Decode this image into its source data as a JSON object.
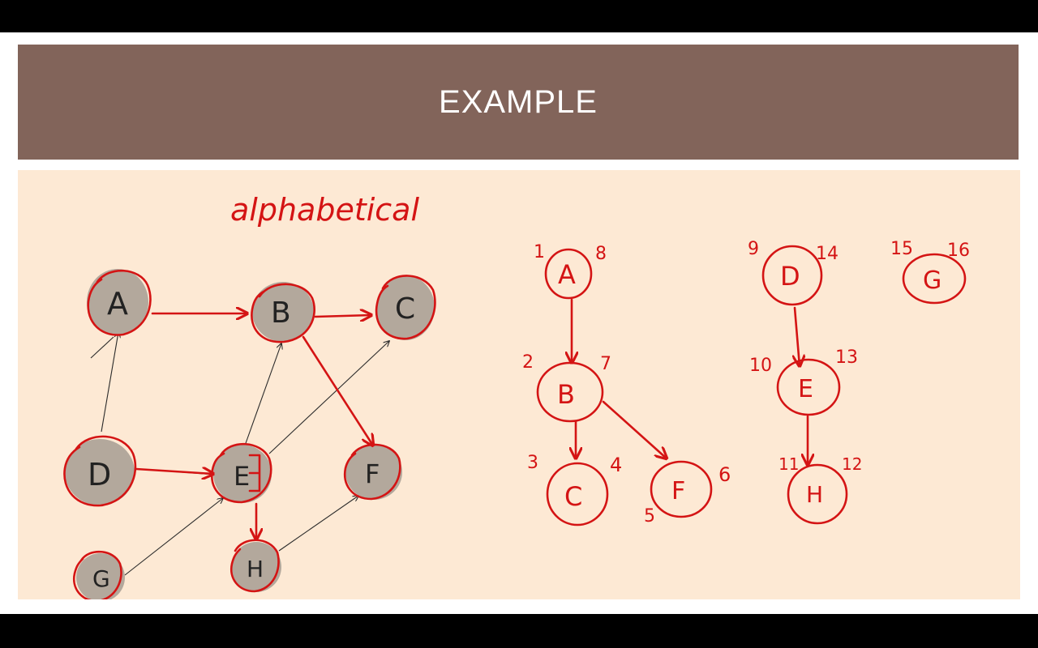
{
  "slide": {
    "title": "EXAMPLE",
    "annotation": "alphabetical"
  },
  "graph": {
    "nodes": [
      {
        "id": "A",
        "label": "A"
      },
      {
        "id": "B",
        "label": "B"
      },
      {
        "id": "C",
        "label": "C"
      },
      {
        "id": "D",
        "label": "D"
      },
      {
        "id": "E",
        "label": "E"
      },
      {
        "id": "F",
        "label": "F"
      },
      {
        "id": "G",
        "label": "G"
      },
      {
        "id": "H",
        "label": "H"
      }
    ],
    "edges": [
      {
        "from": "A",
        "to": "B"
      },
      {
        "from": "B",
        "to": "C"
      },
      {
        "from": "B",
        "to": "F"
      },
      {
        "from": "D",
        "to": "A"
      },
      {
        "from": "D",
        "to": "E"
      },
      {
        "from": "E",
        "to": "B"
      },
      {
        "from": "E",
        "to": "C"
      },
      {
        "from": "E",
        "to": "H"
      },
      {
        "from": "G",
        "to": "E"
      },
      {
        "from": "H",
        "to": "F"
      }
    ]
  },
  "dfs_forest": {
    "nodes": [
      {
        "label": "A",
        "discovery": "1",
        "finish": "8"
      },
      {
        "label": "B",
        "discovery": "2",
        "finish": "7"
      },
      {
        "label": "C",
        "discovery": "3",
        "finish": "4"
      },
      {
        "label": "F",
        "discovery": "5",
        "finish": "6"
      },
      {
        "label": "D",
        "discovery": "9",
        "finish": "14"
      },
      {
        "label": "E",
        "discovery": "10",
        "finish": "13"
      },
      {
        "label": "H",
        "discovery": "11",
        "finish": "12"
      },
      {
        "label": "G",
        "discovery": "15",
        "finish": "16"
      }
    ],
    "tree_edges": [
      {
        "from": "A",
        "to": "B"
      },
      {
        "from": "B",
        "to": "C"
      },
      {
        "from": "B",
        "to": "F"
      },
      {
        "from": "D",
        "to": "E"
      },
      {
        "from": "E",
        "to": "H"
      }
    ]
  },
  "colors": {
    "title_bar": "#82645a",
    "content_bg": "#fde9d4",
    "node_fill": "#b3a89c",
    "ink_red": "#d41414"
  }
}
